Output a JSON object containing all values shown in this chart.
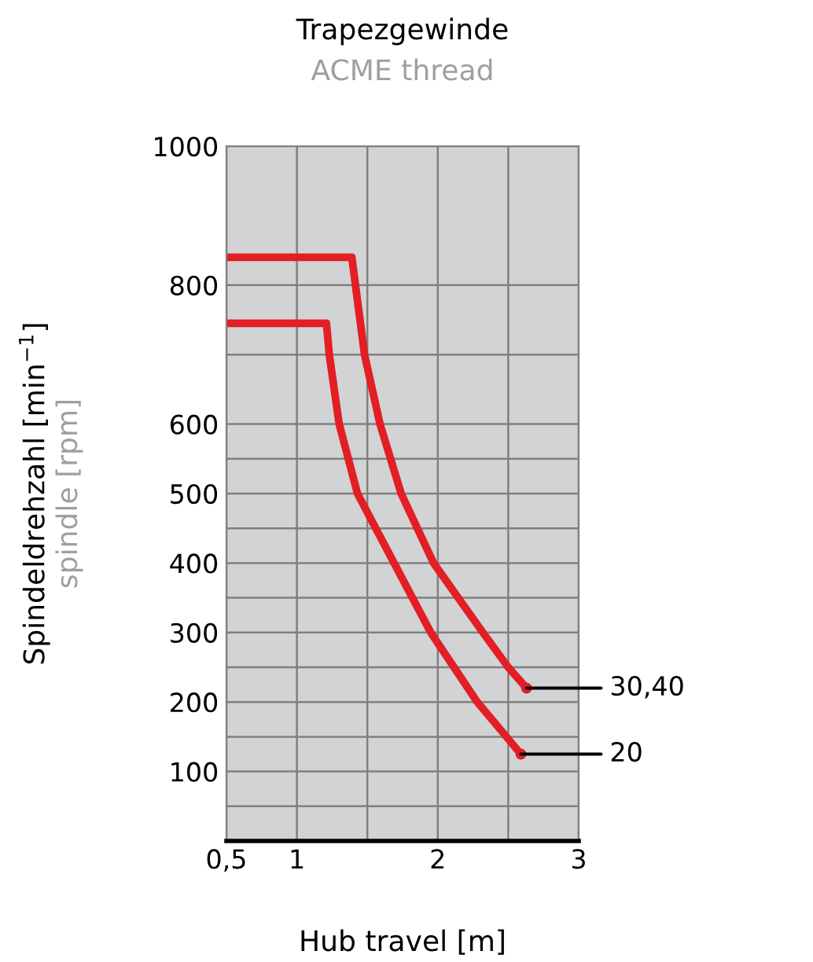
{
  "chart_data": {
    "type": "line",
    "title": "Trapezgewinde",
    "subtitle": "ACME thread",
    "xlabel": "Hub travel [m]",
    "ylabel": "Spindeldrehzahl [min$^{−1}$]\nspindle [rpm]",
    "xlim": [
      0.5,
      3
    ],
    "xticks": [
      {
        "value": 0.5,
        "label": "0,5"
      },
      1,
      {
        "value": 1.5,
        "label": null
      },
      2,
      {
        "value": 2.5,
        "label": null
      },
      3
    ],
    "ylim": [
      0,
      1000
    ],
    "yticks": [
      {
        "value": 50,
        "label": null
      },
      100,
      {
        "value": 150,
        "label": null
      },
      200,
      {
        "value": 250,
        "label": null
      },
      300,
      {
        "value": 350,
        "label": null
      },
      400,
      {
        "value": 450,
        "label": null
      },
      500,
      {
        "value": 550,
        "label": null
      },
      600,
      {
        "value": 700,
        "label": null
      },
      800,
      1000
    ],
    "grid": true,
    "line_style": "solid",
    "marker": "none",
    "series": [
      {
        "name": "30,40",
        "color": "#e31e24",
        "x": [
          0.5,
          1.39,
          1.48,
          1.59,
          1.74,
          1.97,
          2.32,
          2.5,
          2.63
        ],
        "values": [
          840,
          840,
          700,
          600,
          500,
          400,
          300,
          250,
          220
        ]
      },
      {
        "name": "20",
        "color": "#e31e24",
        "x": [
          0.5,
          1.21,
          1.23,
          1.3,
          1.43,
          1.69,
          1.95,
          2.28,
          2.59
        ],
        "values": [
          745,
          745,
          700,
          600,
          500,
          400,
          300,
          200,
          125
        ]
      }
    ]
  }
}
